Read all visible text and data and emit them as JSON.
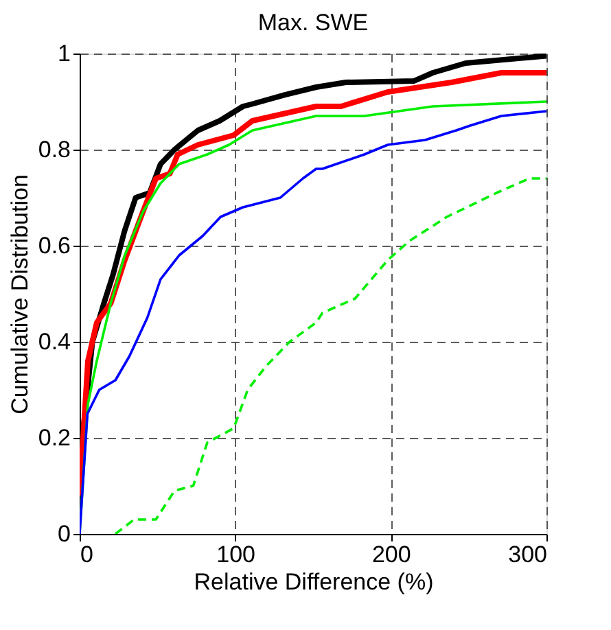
{
  "chart_data": {
    "type": "line",
    "title": "Max. SWE",
    "xlabel": "Relative Difference (%)",
    "ylabel": "Cumulative Distribution",
    "xlim": [
      0,
      300
    ],
    "ylim": [
      0,
      1
    ],
    "xticks": [
      0,
      100,
      200,
      300
    ],
    "yticks": [
      0,
      0.2,
      0.4,
      0.6,
      0.8,
      1
    ],
    "grid": true,
    "marker": "none",
    "series": [
      {
        "color": "#000000",
        "x": [
          0,
          2.4,
          8.2,
          15.6,
          21.5,
          28.8,
          36,
          45,
          52,
          61,
          76,
          90,
          105,
          111,
          132,
          152,
          171,
          215,
          227,
          248,
          300
        ],
        "values": [
          0.12,
          0.22,
          0.4,
          0.48,
          0.54,
          0.63,
          0.7,
          0.71,
          0.77,
          0.8,
          0.84,
          0.86,
          0.89,
          0.895,
          0.914,
          0.93,
          0.94,
          0.943,
          0.96,
          0.98,
          0.995
        ]
      },
      {
        "color": "#ff0000",
        "x": [
          0,
          5.3,
          11,
          20,
          29,
          40.6,
          49,
          58,
          63,
          76,
          99,
          111,
          152,
          168,
          198,
          239,
          271,
          300
        ],
        "values": [
          0.08,
          0.36,
          0.44,
          0.48,
          0.57,
          0.67,
          0.74,
          0.75,
          0.79,
          0.81,
          0.83,
          0.86,
          0.89,
          0.89,
          0.92,
          0.94,
          0.96,
          0.96
        ]
      },
      {
        "color": "#00ee00",
        "x": [
          0,
          5.3,
          11,
          20,
          29,
          40.6,
          52,
          64,
          82,
          96,
          111,
          152,
          183,
          227,
          300
        ],
        "values": [
          0,
          0.27,
          0.36,
          0.48,
          0.58,
          0.67,
          0.73,
          0.77,
          0.79,
          0.81,
          0.84,
          0.87,
          0.87,
          0.89,
          0.9
        ]
      },
      {
        "color": "#0000ff",
        "x": [
          0,
          5,
          12.6,
          23,
          32,
          43.5,
          52,
          64,
          79,
          90.6,
          105,
          129,
          143.5,
          152,
          156,
          183,
          198,
          222,
          242,
          251,
          271,
          300
        ],
        "values": [
          0,
          0.25,
          0.3,
          0.32,
          0.37,
          0.45,
          0.53,
          0.58,
          0.62,
          0.66,
          0.68,
          0.7,
          0.74,
          0.76,
          0.76,
          0.79,
          0.81,
          0.82,
          0.84,
          0.85,
          0.87,
          0.88
        ]
      },
      {
        "color": "#00ee00",
        "line_style": "dashed",
        "x": [
          23,
          35,
          49,
          61,
          73,
          82,
          99,
          108,
          120,
          135,
          152,
          156,
          177,
          198,
          212,
          236,
          268,
          289,
          300
        ],
        "values": [
          0,
          0.03,
          0.03,
          0.09,
          0.1,
          0.19,
          0.22,
          0.3,
          0.35,
          0.4,
          0.44,
          0.46,
          0.49,
          0.57,
          0.61,
          0.66,
          0.71,
          0.74,
          0.74
        ]
      }
    ]
  }
}
